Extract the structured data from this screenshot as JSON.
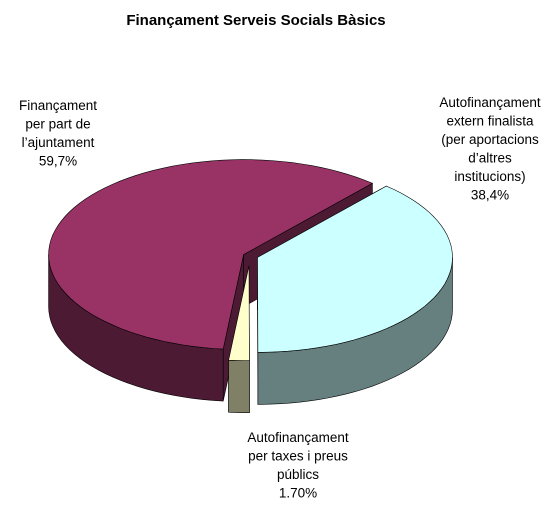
{
  "chart_data": {
    "type": "pie",
    "style": "3d-exploded",
    "title": "Finançament Serveis Socials Bàsics",
    "slices": [
      {
        "label_lines": [
          "Finançament",
          "per part de",
          "l’ajuntament",
          "59,7%"
        ],
        "value": 59.7,
        "value_label": "59,7%",
        "color": "#993366",
        "side_color": "#4d1a33"
      },
      {
        "label_lines": [
          "Autofinançament",
          "extern finalista",
          "(per aportacions",
          "d’altres",
          "institucions)",
          "38,4%"
        ],
        "value": 38.4,
        "value_label": "38,4%",
        "color": "#ccffff",
        "side_color": "#668080"
      },
      {
        "label_lines": [
          "Autofinançament",
          "per taxes i preus",
          "públics",
          "1.70%"
        ],
        "value": 1.7,
        "value_label": "1.70%",
        "color": "#ffffcc",
        "side_color": "#808066"
      }
    ]
  }
}
